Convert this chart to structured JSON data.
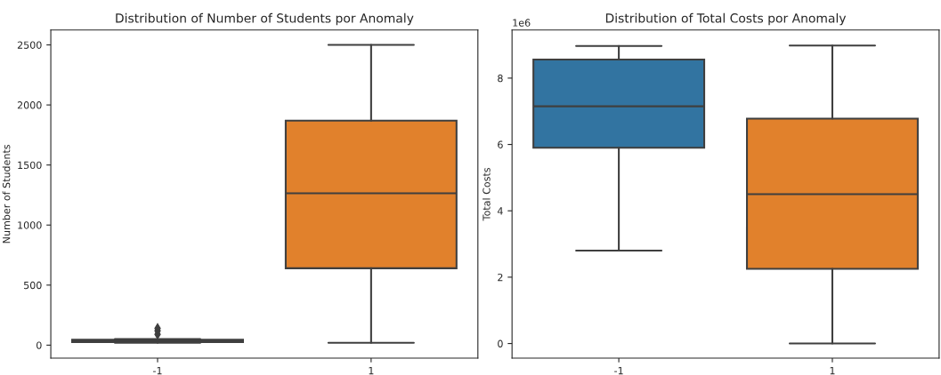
{
  "chart_data": [
    {
      "type": "box",
      "title": "Distribution of Number of Students por Anomaly",
      "ylabel": "Number of Students",
      "categories": [
        "-1",
        "1"
      ],
      "colors": [
        "#3274a1",
        "#e1812c"
      ],
      "marker": "diamond",
      "boxes": [
        {
          "low": 20,
          "q1": 25,
          "median": 35,
          "q3": 45,
          "high": 50,
          "outliers": [
            90,
            120,
            140
          ]
        },
        {
          "low": 20,
          "q1": 640,
          "median": 1265,
          "q3": 1870,
          "high": 2500
        }
      ],
      "ylim": [
        -108,
        2624
      ],
      "yticks": [
        0,
        500,
        1000,
        1500,
        2000,
        2500
      ],
      "grid": false
    },
    {
      "type": "box",
      "title": "Distribution of Total Costs por Anomaly",
      "ylabel": "Total Costs",
      "categories": [
        "-1",
        "1"
      ],
      "colors": [
        "#3274a1",
        "#e1812c"
      ],
      "annotations": [
        "1e6"
      ],
      "boxes": [
        {
          "low": 2.8,
          "q1": 5.9,
          "median": 7.15,
          "q3": 8.56,
          "high": 8.97
        },
        {
          "low": 0,
          "q1": 2.25,
          "median": 4.5,
          "q3": 6.78,
          "high": 8.98
        }
      ],
      "ylim": [
        -0.44,
        9.45
      ],
      "yticks": [
        0,
        2,
        4,
        6,
        8
      ],
      "grid": false
    }
  ]
}
